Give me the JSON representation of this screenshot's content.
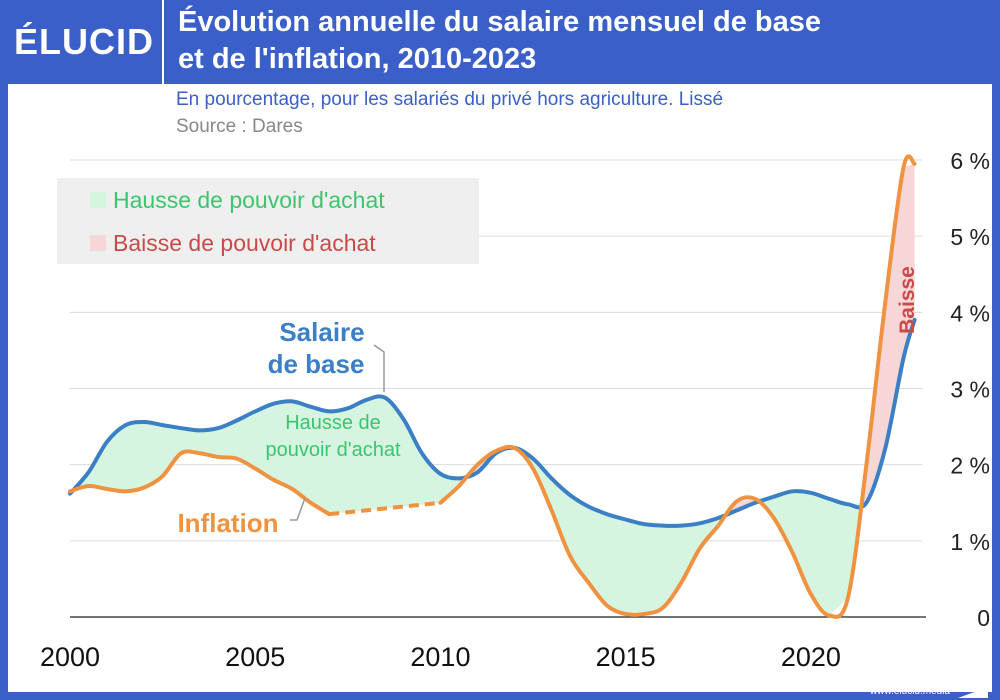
{
  "header": {
    "logo": "ÉLUCID",
    "title_line1": "Évolution annuelle du salaire mensuel de base",
    "title_line2": "et de l'inflation, 2010-2023"
  },
  "subtitle": "En pourcentage, pour les salariés du privé hors agriculture. Lissé",
  "source": "Source : Dares",
  "footer": "www.elucid.media",
  "colors": {
    "brand": "#3a5fc8",
    "salaire": "#3b7fc4",
    "inflation": "#ef9340",
    "hausse_fill": "#d6f5e0",
    "baisse_fill": "#f6d6d6",
    "hausse_text": "#3cc46e",
    "baisse_text": "#c94a4a"
  },
  "chart_data": {
    "type": "line",
    "xlim": [
      2000,
      2023
    ],
    "ylim": [
      0,
      6
    ],
    "x_ticks": [
      2000,
      2005,
      2010,
      2015,
      2020
    ],
    "y_ticks": [
      {
        "value": 0,
        "label": "0"
      },
      {
        "value": 1,
        "label": "1 %"
      },
      {
        "value": 2,
        "label": "2 %"
      },
      {
        "value": 3,
        "label": "3 %"
      },
      {
        "value": 4,
        "label": "4 %"
      },
      {
        "value": 5,
        "label": "5 %"
      },
      {
        "value": 6,
        "label": "6 %"
      }
    ],
    "grid": true,
    "legend": [
      {
        "label": "Hausse de pouvoir d'achat",
        "kind": "hausse"
      },
      {
        "label": "Baisse de pouvoir d'achat",
        "kind": "baisse"
      }
    ],
    "legend_position": "top-left",
    "series": [
      {
        "name": "Salaire de base",
        "color": "#3b7fc4",
        "points": [
          [
            2000.0,
            1.62
          ],
          [
            2000.5,
            1.9
          ],
          [
            2001.0,
            2.3
          ],
          [
            2001.5,
            2.52
          ],
          [
            2002.0,
            2.56
          ],
          [
            2002.5,
            2.52
          ],
          [
            2003.0,
            2.48
          ],
          [
            2003.5,
            2.45
          ],
          [
            2004.0,
            2.48
          ],
          [
            2004.5,
            2.58
          ],
          [
            2005.0,
            2.7
          ],
          [
            2005.5,
            2.8
          ],
          [
            2006.0,
            2.83
          ],
          [
            2006.5,
            2.76
          ],
          [
            2007.0,
            2.7
          ],
          [
            2007.5,
            2.74
          ],
          [
            2008.0,
            2.85
          ],
          [
            2008.5,
            2.88
          ],
          [
            2009.0,
            2.6
          ],
          [
            2009.5,
            2.15
          ],
          [
            2010.0,
            1.88
          ],
          [
            2010.5,
            1.82
          ],
          [
            2011.0,
            1.9
          ],
          [
            2011.5,
            2.15
          ],
          [
            2012.0,
            2.22
          ],
          [
            2012.5,
            2.08
          ],
          [
            2013.0,
            1.82
          ],
          [
            2013.5,
            1.6
          ],
          [
            2014.0,
            1.45
          ],
          [
            2014.5,
            1.35
          ],
          [
            2015.0,
            1.28
          ],
          [
            2015.5,
            1.22
          ],
          [
            2016.0,
            1.2
          ],
          [
            2016.5,
            1.2
          ],
          [
            2017.0,
            1.23
          ],
          [
            2017.5,
            1.3
          ],
          [
            2018.0,
            1.4
          ],
          [
            2018.5,
            1.5
          ],
          [
            2019.0,
            1.58
          ],
          [
            2019.5,
            1.65
          ],
          [
            2020.0,
            1.63
          ],
          [
            2020.5,
            1.55
          ],
          [
            2021.0,
            1.48
          ],
          [
            2021.5,
            1.5
          ],
          [
            2022.0,
            2.2
          ],
          [
            2022.5,
            3.4
          ],
          [
            2022.8,
            3.9
          ]
        ]
      },
      {
        "name": "Inflation",
        "color": "#ef9340",
        "points": [
          [
            2000.0,
            1.65
          ],
          [
            2000.5,
            1.72
          ],
          [
            2001.0,
            1.68
          ],
          [
            2001.5,
            1.65
          ],
          [
            2002.0,
            1.7
          ],
          [
            2002.5,
            1.85
          ],
          [
            2003.0,
            2.15
          ],
          [
            2003.5,
            2.15
          ],
          [
            2004.0,
            2.1
          ],
          [
            2004.5,
            2.08
          ],
          [
            2005.0,
            1.95
          ],
          [
            2005.5,
            1.8
          ],
          [
            2006.0,
            1.68
          ],
          [
            2006.5,
            1.5
          ],
          [
            2007.0,
            1.35
          ],
          [
            2010.0,
            1.5
          ],
          [
            2010.5,
            1.72
          ],
          [
            2011.0,
            2.0
          ],
          [
            2011.5,
            2.18
          ],
          [
            2012.0,
            2.22
          ],
          [
            2012.5,
            1.95
          ],
          [
            2013.0,
            1.4
          ],
          [
            2013.5,
            0.8
          ],
          [
            2014.0,
            0.45
          ],
          [
            2014.5,
            0.15
          ],
          [
            2015.0,
            0.04
          ],
          [
            2015.5,
            0.04
          ],
          [
            2016.0,
            0.12
          ],
          [
            2016.5,
            0.45
          ],
          [
            2017.0,
            0.9
          ],
          [
            2017.5,
            1.2
          ],
          [
            2018.0,
            1.52
          ],
          [
            2018.5,
            1.55
          ],
          [
            2019.0,
            1.3
          ],
          [
            2019.5,
            0.85
          ],
          [
            2020.0,
            0.3
          ],
          [
            2020.5,
            0.02
          ],
          [
            2021.0,
            0.25
          ],
          [
            2021.5,
            2.0
          ],
          [
            2022.0,
            4.1
          ],
          [
            2022.5,
            5.9
          ],
          [
            2022.8,
            5.95
          ]
        ],
        "dashed_segment": [
          2007.0,
          2010.0
        ]
      }
    ],
    "annotations": [
      {
        "lines": [
          "Salaire",
          "de base"
        ],
        "color": "#3b7fc4"
      },
      {
        "lines": [
          "Hausse de",
          "pouvoir d'achat"
        ],
        "color": "#3cc46e"
      },
      {
        "lines": [
          "Inflation"
        ],
        "color": "#ef9340"
      },
      {
        "lines": [
          "Baisse"
        ],
        "color": "#c94a4a"
      }
    ]
  }
}
